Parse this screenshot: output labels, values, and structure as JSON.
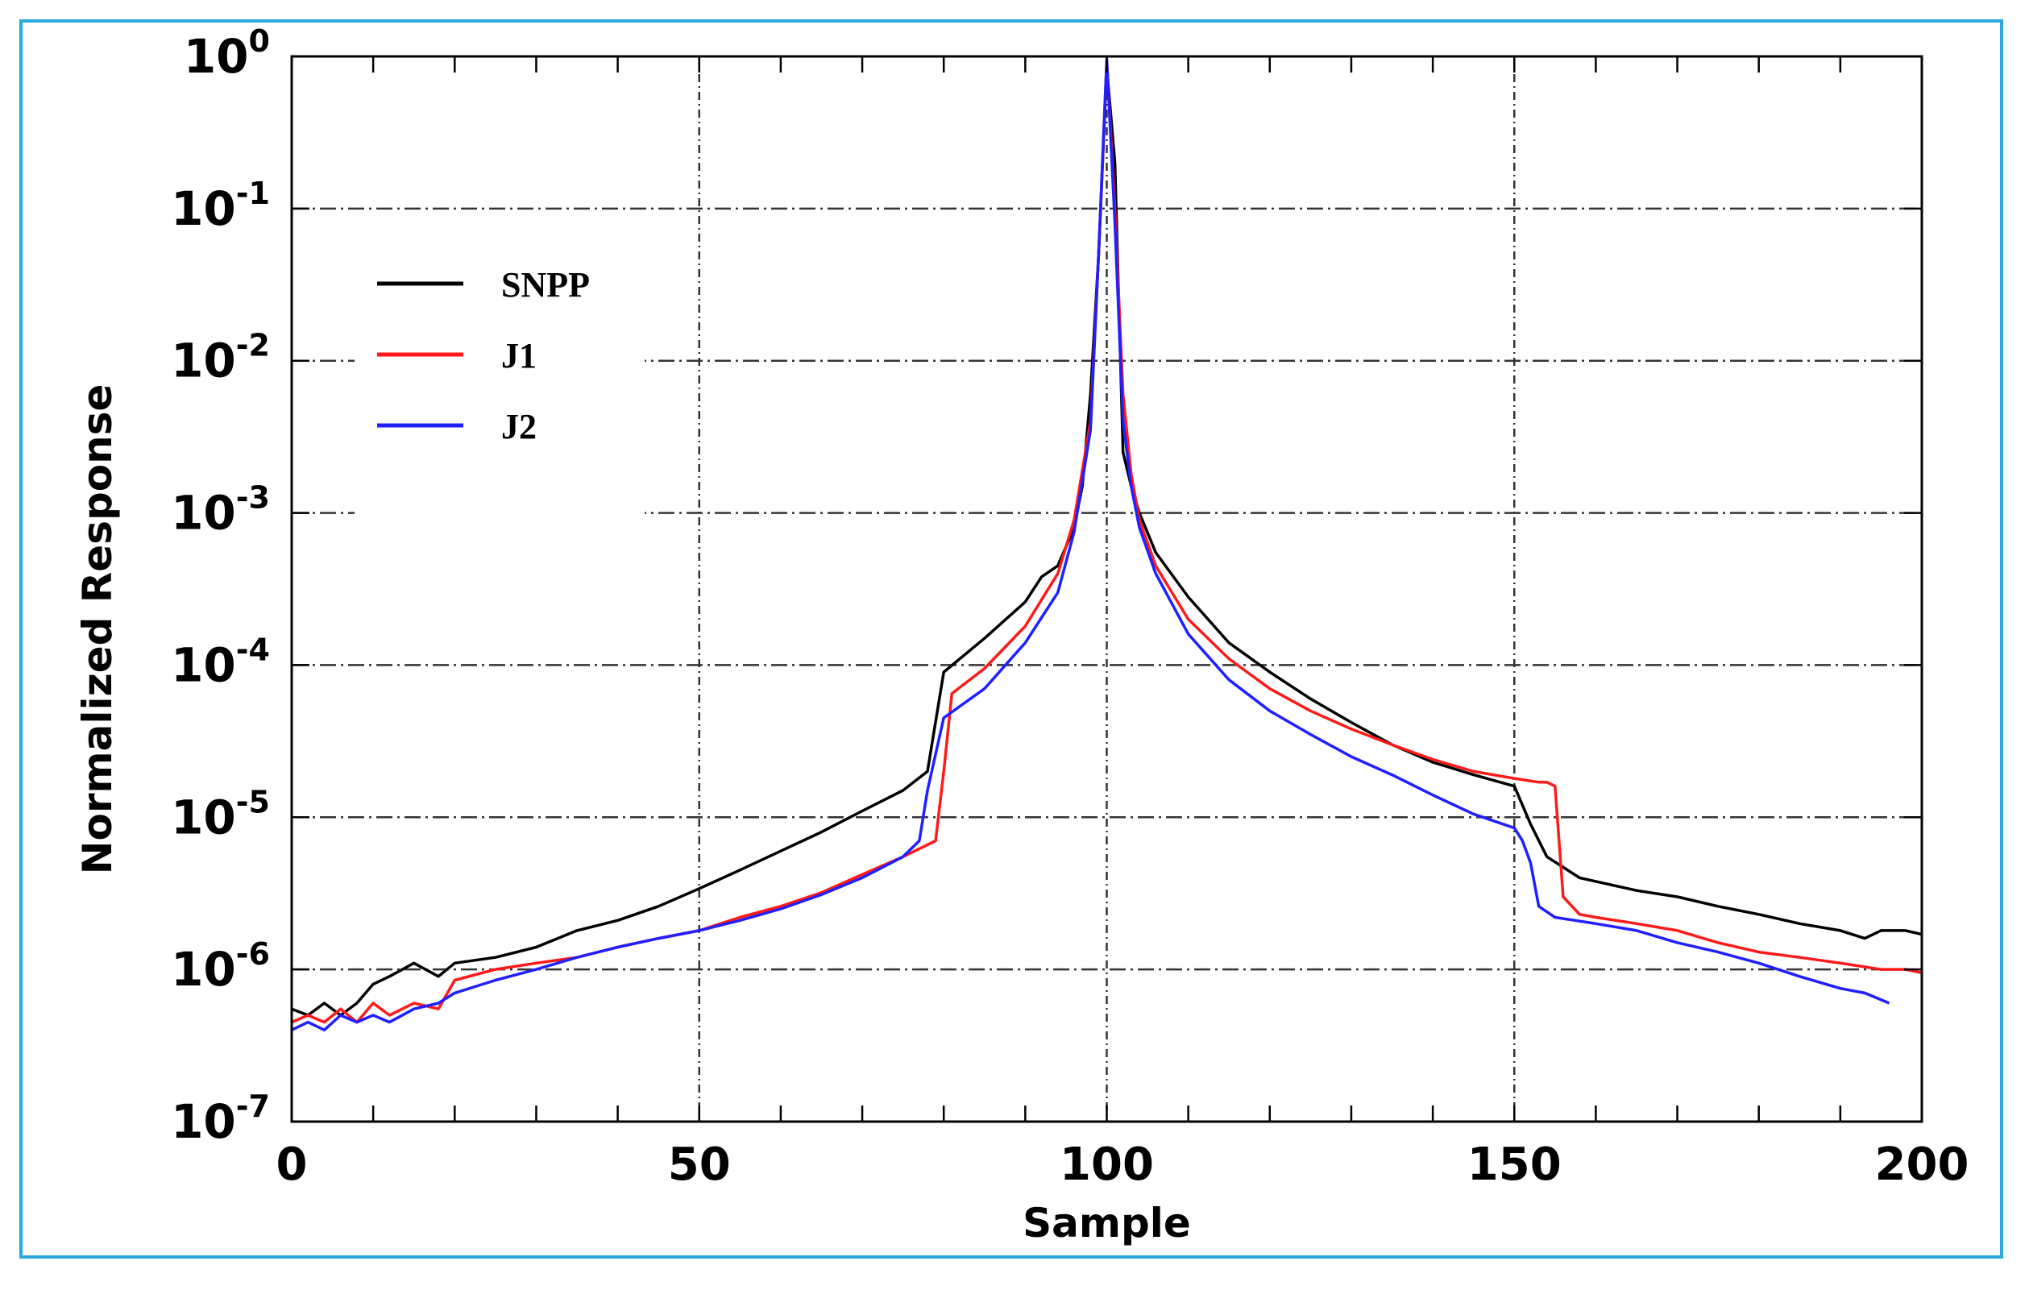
{
  "chart_data": {
    "type": "line",
    "title": "",
    "xlabel": "Sample",
    "ylabel": "Normalized Response",
    "xlim": [
      0,
      200
    ],
    "ylim_exponents": [
      -7,
      0
    ],
    "yscale": "log",
    "grid": true,
    "legend_position": "upper-left",
    "x_ticks": [
      "0",
      "50",
      "100",
      "150",
      "200"
    ],
    "y_ticks": [
      {
        "base": "10",
        "exp": "0"
      },
      {
        "base": "10",
        "exp": "-1"
      },
      {
        "base": "10",
        "exp": "-2"
      },
      {
        "base": "10",
        "exp": "-3"
      },
      {
        "base": "10",
        "exp": "-4"
      },
      {
        "base": "10",
        "exp": "-5"
      },
      {
        "base": "10",
        "exp": "-6"
      },
      {
        "base": "10",
        "exp": "-7"
      }
    ],
    "series": [
      {
        "name": "SNPP",
        "color": "#000000",
        "x": [
          0,
          2,
          4,
          6,
          8,
          10,
          12,
          15,
          18,
          20,
          25,
          30,
          35,
          40,
          45,
          50,
          55,
          60,
          65,
          70,
          75,
          78,
          80,
          85,
          90,
          92,
          94,
          96,
          97,
          98,
          99,
          100,
          101,
          102,
          103,
          104,
          106,
          110,
          115,
          120,
          125,
          130,
          135,
          140,
          145,
          150,
          152,
          154,
          158,
          165,
          170,
          175,
          180,
          185,
          190,
          193,
          195,
          198,
          200
        ],
        "values": [
          5.5e-07,
          5e-07,
          6e-07,
          5e-07,
          6e-07,
          8e-07,
          9e-07,
          1.1e-06,
          9e-07,
          1.1e-06,
          1.2e-06,
          1.4e-06,
          1.8e-06,
          2.1e-06,
          2.6e-06,
          3.4e-06,
          4.5e-06,
          6e-06,
          8e-06,
          1.1e-05,
          1.5e-05,
          2e-05,
          9e-05,
          0.00015,
          0.00026,
          0.00038,
          0.00045,
          0.0008,
          0.0015,
          0.006,
          0.05,
          0.85,
          0.2,
          0.0025,
          0.0015,
          0.001,
          0.00055,
          0.00028,
          0.00014,
          9e-05,
          6e-05,
          4.2e-05,
          3e-05,
          2.3e-05,
          1.9e-05,
          1.6e-05,
          9e-06,
          5.5e-06,
          4e-06,
          3.3e-06,
          3e-06,
          2.6e-06,
          2.3e-06,
          2e-06,
          1.8e-06,
          1.6e-06,
          1.8e-06,
          1.8e-06,
          1.7e-06
        ]
      },
      {
        "name": "J1",
        "color": "#ff1a1a",
        "x": [
          0,
          2,
          4,
          6,
          8,
          10,
          12,
          15,
          18,
          20,
          25,
          30,
          35,
          40,
          45,
          50,
          55,
          60,
          65,
          70,
          75,
          79,
          80,
          81,
          85,
          90,
          94,
          96,
          98,
          99,
          100,
          101,
          102,
          103,
          104,
          106,
          110,
          115,
          120,
          125,
          130,
          135,
          140,
          145,
          150,
          153,
          154,
          155,
          156,
          158,
          160,
          165,
          170,
          175,
          180,
          185,
          190,
          195,
          198,
          200
        ],
        "values": [
          4.5e-07,
          5e-07,
          4.5e-07,
          5.5e-07,
          4.5e-07,
          6e-07,
          5e-07,
          6e-07,
          5.5e-07,
          8.5e-07,
          1e-06,
          1.1e-06,
          1.2e-06,
          1.4e-06,
          1.6e-06,
          1.8e-06,
          2.2e-06,
          2.6e-06,
          3.2e-06,
          4.2e-06,
          5.5e-06,
          7e-06,
          2e-05,
          6.5e-05,
          9.5e-05,
          0.00018,
          0.0004,
          0.0009,
          0.004,
          0.05,
          0.95,
          0.1,
          0.006,
          0.0018,
          0.0009,
          0.00045,
          0.0002,
          0.00011,
          7e-05,
          5e-05,
          3.8e-05,
          3e-05,
          2.4e-05,
          2e-05,
          1.8e-05,
          1.7e-05,
          1.7e-05,
          1.6e-05,
          3e-06,
          2.3e-06,
          2.2e-06,
          2e-06,
          1.8e-06,
          1.5e-06,
          1.3e-06,
          1.2e-06,
          1.1e-06,
          1e-06,
          1e-06,
          9.5e-07
        ]
      },
      {
        "name": "J2",
        "color": "#1f1fff",
        "x": [
          0,
          2,
          4,
          6,
          8,
          10,
          12,
          15,
          18,
          20,
          25,
          30,
          35,
          40,
          45,
          50,
          55,
          60,
          65,
          70,
          75,
          77,
          78,
          80,
          85,
          90,
          94,
          96,
          98,
          99,
          100,
          101,
          102,
          103,
          104,
          106,
          110,
          115,
          120,
          125,
          130,
          135,
          140,
          145,
          150,
          151,
          152,
          153,
          155,
          160,
          165,
          170,
          175,
          180,
          185,
          190,
          193,
          196
        ],
        "values": [
          4e-07,
          4.5e-07,
          4e-07,
          5e-07,
          4.5e-07,
          5e-07,
          4.5e-07,
          5.5e-07,
          6e-07,
          7e-07,
          8.5e-07,
          1e-06,
          1.2e-06,
          1.4e-06,
          1.6e-06,
          1.8e-06,
          2.1e-06,
          2.5e-06,
          3.1e-06,
          4e-06,
          5.5e-06,
          7e-06,
          1.5e-05,
          4.5e-05,
          7e-05,
          0.00014,
          0.0003,
          0.00075,
          0.0035,
          0.05,
          0.95,
          0.08,
          0.004,
          0.0015,
          0.0008,
          0.0004,
          0.00016,
          8e-05,
          5e-05,
          3.5e-05,
          2.5e-05,
          1.9e-05,
          1.4e-05,
          1.05e-05,
          8.5e-06,
          7e-06,
          5e-06,
          2.6e-06,
          2.2e-06,
          2e-06,
          1.8e-06,
          1.5e-06,
          1.3e-06,
          1.1e-06,
          9e-07,
          7.5e-07,
          7e-07,
          6e-07
        ]
      }
    ]
  }
}
